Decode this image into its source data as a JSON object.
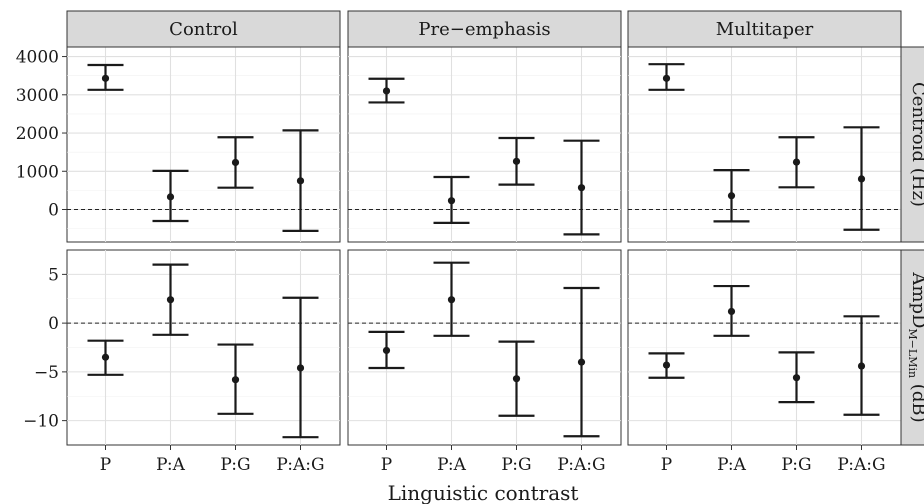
{
  "chart_data": {
    "type": "errorbar",
    "xlabel": "Linguistic contrast",
    "categories": [
      "P",
      "P:A",
      "P:G",
      "P:A:G"
    ],
    "columns": [
      "Control",
      "Pre−emphasis",
      "Multitaper"
    ],
    "rows": [
      {
        "id": "centroid",
        "label_main": "Centroid (Hz)",
        "label_sub": "",
        "label_tail": "",
        "ylim": [
          -850,
          4250
        ],
        "ticks": [
          0,
          1000,
          2000,
          3000,
          4000
        ],
        "tick_labels": [
          "0",
          "1000",
          "2000",
          "3000",
          "4000"
        ],
        "reference_line": 0
      },
      {
        "id": "ampd",
        "label_main": "AmpD",
        "label_sub": "M−LMin",
        "label_tail": " (dB)",
        "ylim": [
          -12.5,
          7.5
        ],
        "ticks": [
          -10,
          -5,
          0,
          5
        ],
        "tick_labels": [
          "−10",
          "−5",
          "0",
          "5"
        ],
        "reference_line": 0
      }
    ],
    "series": [
      {
        "row": "centroid",
        "column": "Control",
        "mean": [
          3430,
          330,
          1230,
          750
        ],
        "lower": [
          3130,
          -300,
          570,
          -560
        ],
        "upper": [
          3780,
          1010,
          1890,
          2070
        ]
      },
      {
        "row": "centroid",
        "column": "Pre−emphasis",
        "mean": [
          3100,
          230,
          1260,
          570
        ],
        "lower": [
          2800,
          -350,
          650,
          -650
        ],
        "upper": [
          3420,
          850,
          1870,
          1800
        ]
      },
      {
        "row": "centroid",
        "column": "Multitaper",
        "mean": [
          3430,
          360,
          1240,
          800
        ],
        "lower": [
          3130,
          -310,
          580,
          -530
        ],
        "upper": [
          3800,
          1030,
          1890,
          2150
        ]
      },
      {
        "row": "ampd",
        "column": "Control",
        "mean": [
          -3.5,
          2.4,
          -5.8,
          -4.6
        ],
        "lower": [
          -5.3,
          -1.2,
          -9.3,
          -11.7
        ],
        "upper": [
          -1.8,
          6.0,
          -2.2,
          2.6
        ]
      },
      {
        "row": "ampd",
        "column": "Pre−emphasis",
        "mean": [
          -2.8,
          2.4,
          -5.7,
          -4.0
        ],
        "lower": [
          -4.6,
          -1.3,
          -9.5,
          -11.6
        ],
        "upper": [
          -0.9,
          6.2,
          -1.9,
          3.6
        ]
      },
      {
        "row": "ampd",
        "column": "Multitaper",
        "mean": [
          -4.3,
          1.2,
          -5.6,
          -4.4
        ],
        "lower": [
          -5.6,
          -1.3,
          -8.1,
          -9.4
        ],
        "upper": [
          -3.1,
          3.8,
          -3.0,
          0.7
        ]
      }
    ]
  }
}
